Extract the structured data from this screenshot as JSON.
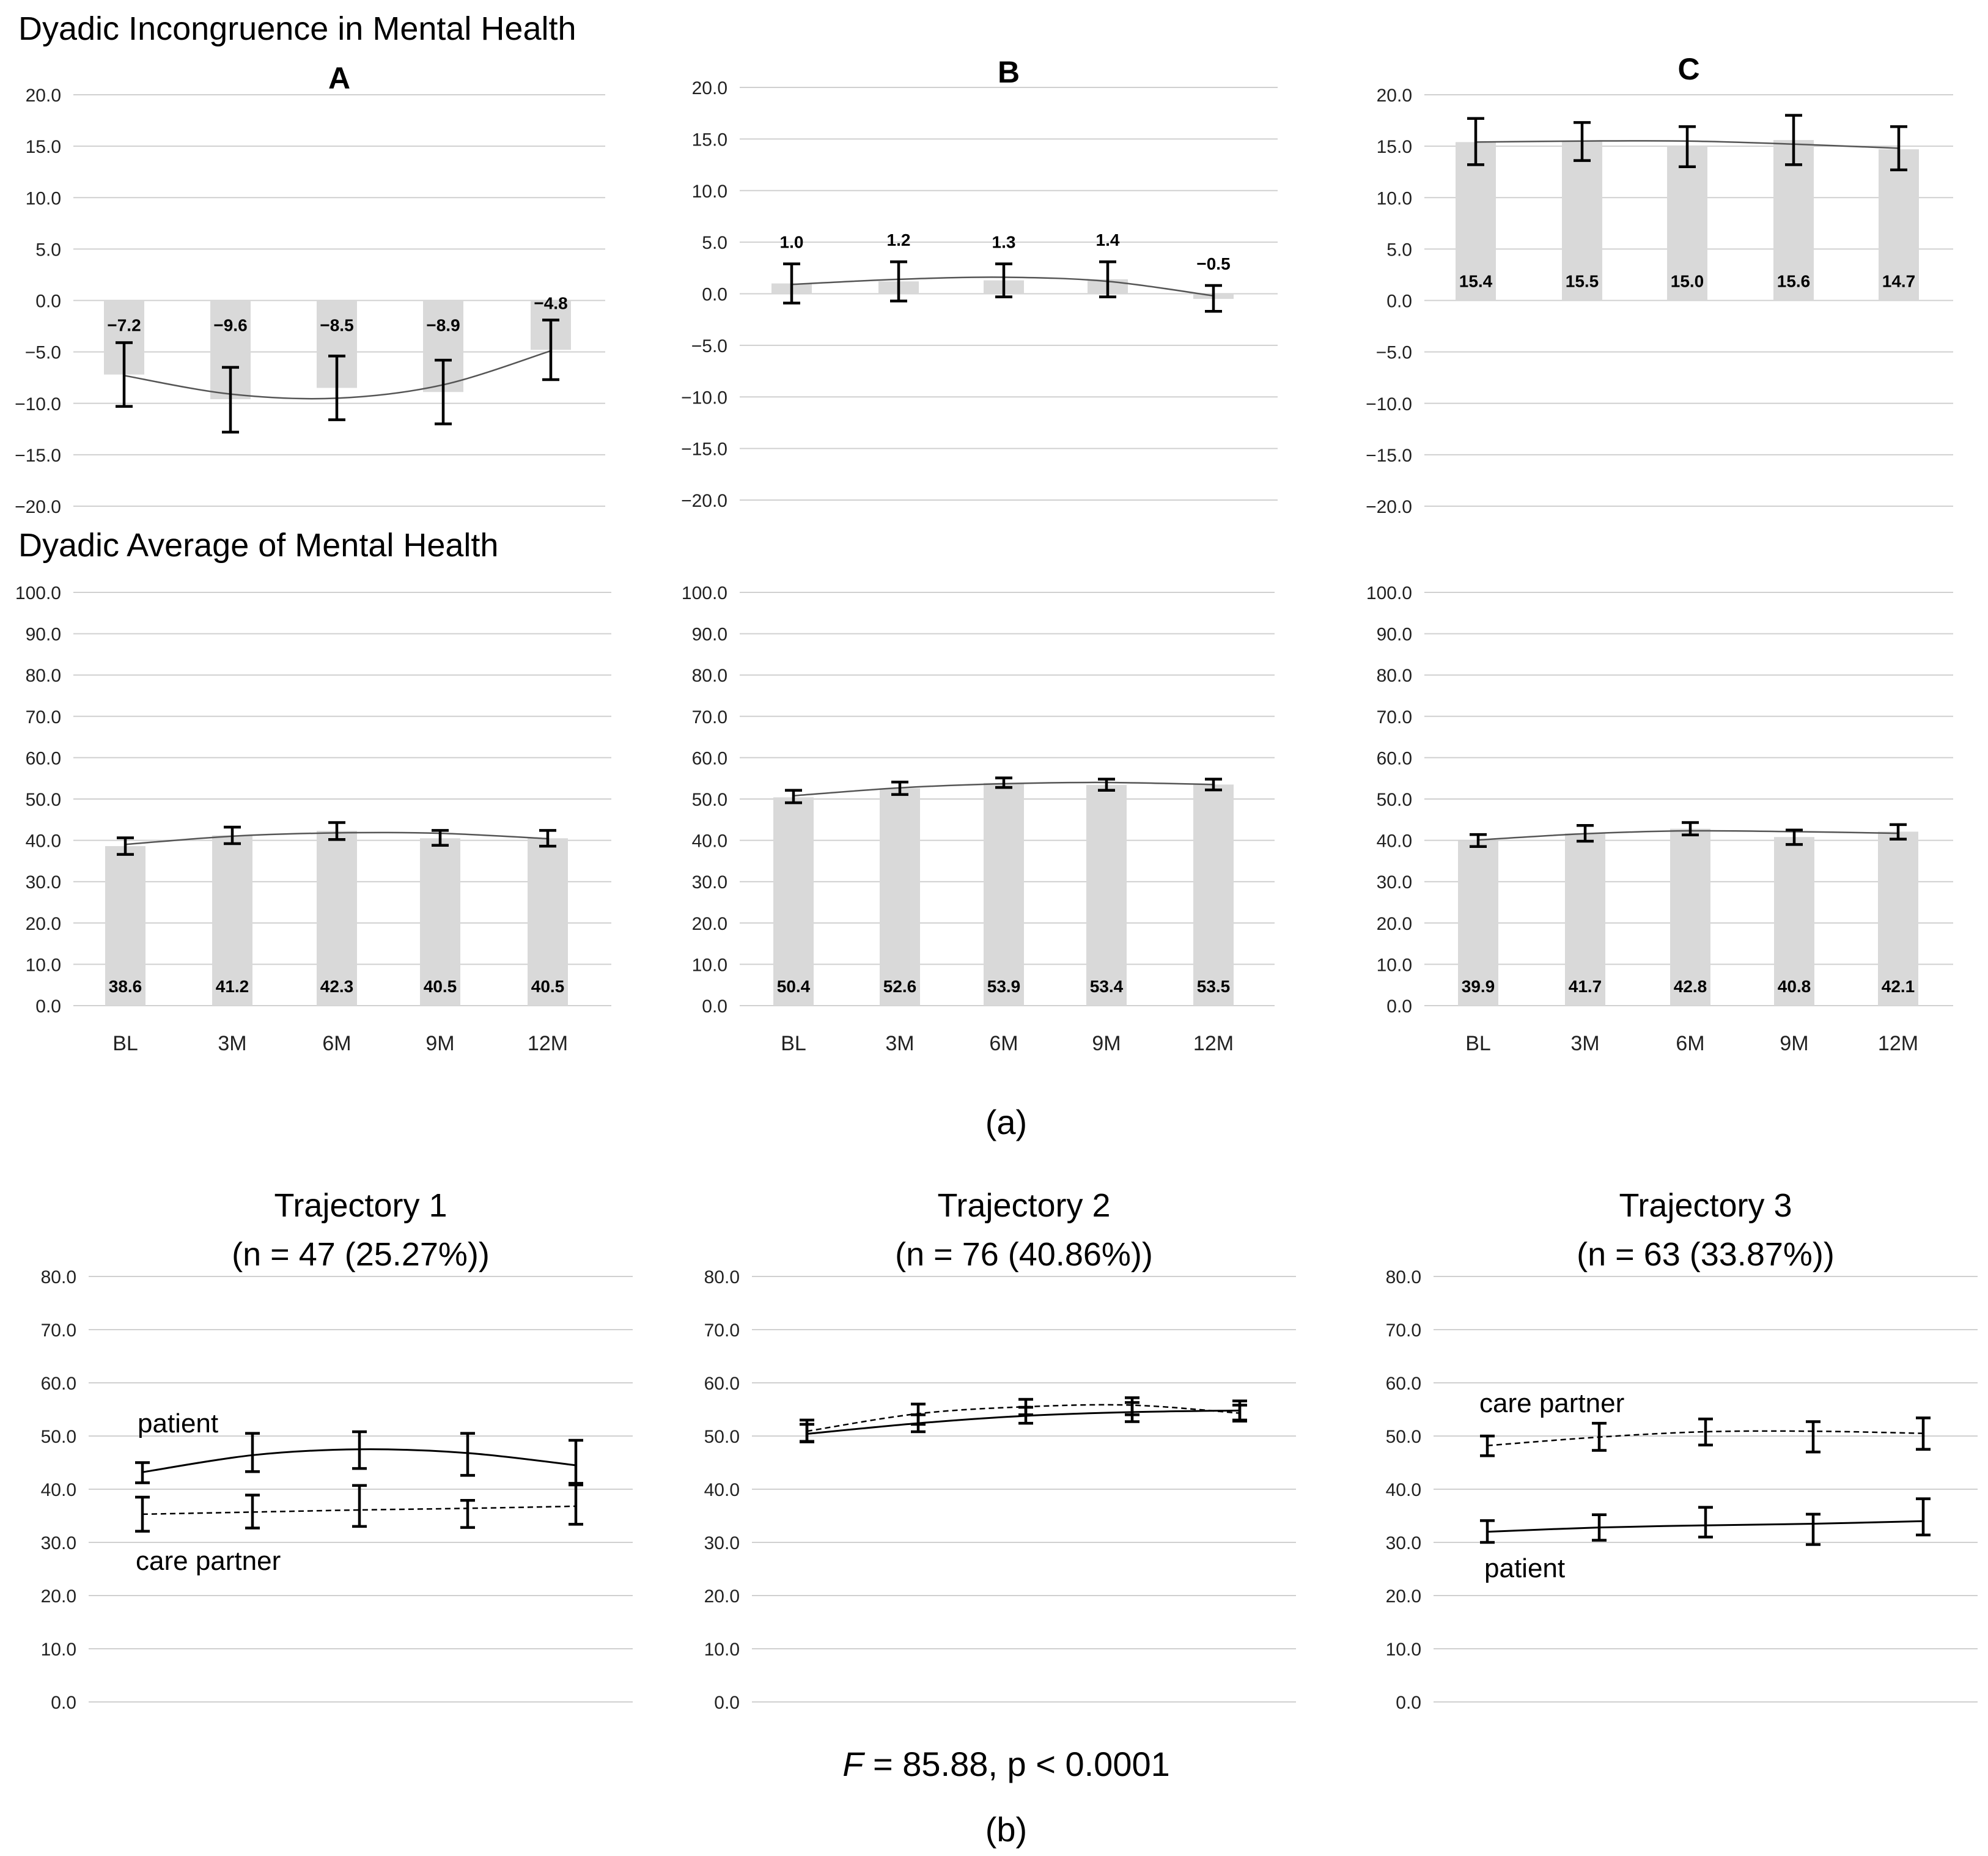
{
  "figure": {
    "section_a_title": "Dyadic Incongruence in Mental Health",
    "section_a_subtitle": "Dyadic Average of Mental Health",
    "caption_a": "(a)",
    "caption_b": "(b)",
    "statistic": "F = 85.88, p < 0.0001",
    "statistic_symbol": "F",
    "statistic_rest": " = 85.88, p < 0.0001",
    "colors": {
      "bar": "#d9d9d9",
      "grid": "#d0d0d0",
      "line": "#000000",
      "trend": "#555555"
    }
  },
  "chart_data": [
    {
      "id": "incongruence-A",
      "type": "bar",
      "title": "A",
      "categories": [
        "BL",
        "3M",
        "6M",
        "9M",
        "12M"
      ],
      "values": [
        -7.2,
        -9.6,
        -8.5,
        -8.9,
        -4.8
      ],
      "labels": [
        "−7.2",
        "−9.6",
        "−8.5",
        "−8.9",
        "−4.8"
      ],
      "errors": [
        [
          -10.3,
          -4.1
        ],
        [
          -12.8,
          -6.5
        ],
        [
          -11.6,
          -5.4
        ],
        [
          -12.0,
          -5.8
        ],
        [
          -7.7,
          -1.9
        ]
      ],
      "trend": [
        -7.3,
        -9.1,
        -9.5,
        -8.2,
        -4.9
      ],
      "ylim": [
        -20,
        20
      ],
      "yticks": [
        "20.0",
        "15.0",
        "10.0",
        "5.0",
        "0.0",
        "−5.0",
        "−10.0",
        "−15.0",
        "−20.0"
      ]
    },
    {
      "id": "incongruence-B",
      "type": "bar",
      "title": "B",
      "categories": [
        "BL",
        "3M",
        "6M",
        "9M",
        "12M"
      ],
      "values": [
        1.0,
        1.2,
        1.3,
        1.4,
        -0.5
      ],
      "labels": [
        "1.0",
        "1.2",
        "1.3",
        "1.4",
        "−0.5"
      ],
      "errors": [
        [
          -0.9,
          2.9
        ],
        [
          -0.7,
          3.1
        ],
        [
          -0.3,
          2.9
        ],
        [
          -0.3,
          3.1
        ],
        [
          -1.7,
          0.8
        ]
      ],
      "trend": [
        0.9,
        1.4,
        1.6,
        1.2,
        -0.2
      ],
      "ylim": [
        -20,
        20
      ],
      "yticks": [
        "20.0",
        "15.0",
        "10.0",
        "5.0",
        "0.0",
        "−5.0",
        "−10.0",
        "−15.0",
        "−20.0"
      ]
    },
    {
      "id": "incongruence-C",
      "type": "bar",
      "title": "C",
      "categories": [
        "BL",
        "3M",
        "6M",
        "9M",
        "12M"
      ],
      "values": [
        15.4,
        15.5,
        15.0,
        15.6,
        14.7
      ],
      "labels": [
        "15.4",
        "15.5",
        "15.0",
        "15.6",
        "14.7"
      ],
      "errors": [
        [
          13.2,
          17.7
        ],
        [
          13.6,
          17.3
        ],
        [
          13.0,
          16.9
        ],
        [
          13.2,
          18.0
        ],
        [
          12.7,
          16.9
        ]
      ],
      "trend": [
        15.4,
        15.5,
        15.5,
        15.2,
        14.8
      ],
      "ylim": [
        -20,
        20
      ],
      "yticks": [
        "20.0",
        "15.0",
        "10.0",
        "5.0",
        "0.0",
        "−5.0",
        "−10.0",
        "−15.0",
        "−20.0"
      ]
    },
    {
      "id": "average-A",
      "type": "bar",
      "categories": [
        "BL",
        "3M",
        "6M",
        "9M",
        "12M"
      ],
      "values": [
        38.6,
        41.2,
        42.3,
        40.5,
        40.5
      ],
      "labels": [
        "38.6",
        "41.2",
        "42.3",
        "40.5",
        "40.5"
      ],
      "errors": [
        [
          36.6,
          40.6
        ],
        [
          39.2,
          43.2
        ],
        [
          40.2,
          44.3
        ],
        [
          38.8,
          42.4
        ],
        [
          38.6,
          42.4
        ]
      ],
      "trend": [
        39.0,
        41.0,
        41.8,
        41.7,
        40.4
      ],
      "ylim": [
        0,
        100
      ],
      "yticks": [
        "100.0",
        "90.0",
        "80.0",
        "70.0",
        "60.0",
        "50.0",
        "40.0",
        "30.0",
        "20.0",
        "10.0",
        "0.0"
      ]
    },
    {
      "id": "average-B",
      "type": "bar",
      "categories": [
        "BL",
        "3M",
        "6M",
        "9M",
        "12M"
      ],
      "values": [
        50.4,
        52.6,
        53.9,
        53.4,
        53.5
      ],
      "labels": [
        "50.4",
        "52.6",
        "53.9",
        "53.4",
        "53.5"
      ],
      "errors": [
        [
          49.1,
          52.1
        ],
        [
          51.1,
          54.1
        ],
        [
          52.8,
          55.1
        ],
        [
          52.1,
          54.8
        ],
        [
          52.2,
          54.8
        ]
      ],
      "trend": [
        50.8,
        52.7,
        53.7,
        54.0,
        53.5
      ],
      "ylim": [
        0,
        100
      ],
      "yticks": [
        "100.0",
        "90.0",
        "80.0",
        "70.0",
        "60.0",
        "50.0",
        "40.0",
        "30.0",
        "20.0",
        "10.0",
        "0.0"
      ]
    },
    {
      "id": "average-C",
      "type": "bar",
      "categories": [
        "BL",
        "3M",
        "6M",
        "9M",
        "12M"
      ],
      "values": [
        39.9,
        41.7,
        42.8,
        40.8,
        42.1
      ],
      "labels": [
        "39.9",
        "41.7",
        "42.8",
        "40.8",
        "42.1"
      ],
      "errors": [
        [
          38.5,
          41.4
        ],
        [
          39.8,
          43.6
        ],
        [
          41.3,
          44.3
        ],
        [
          39.0,
          42.5
        ],
        [
          40.3,
          43.8
        ]
      ],
      "trend": [
        40.1,
        41.6,
        42.3,
        42.1,
        41.7
      ],
      "ylim": [
        0,
        100
      ],
      "yticks": [
        "100.0",
        "90.0",
        "80.0",
        "70.0",
        "60.0",
        "50.0",
        "40.0",
        "30.0",
        "20.0",
        "10.0",
        "0.0"
      ]
    },
    {
      "id": "trajectory-1",
      "type": "line",
      "title": "Trajectory 1",
      "subtitle": "(n = 47 (25.27%))",
      "x_positions": 5,
      "ylim": [
        0,
        80
      ],
      "yticks": [
        "80.0",
        "70.0",
        "60.0",
        "50.0",
        "40.0",
        "30.0",
        "20.0",
        "10.0",
        "0.0"
      ],
      "series": [
        {
          "name": "patient",
          "style": "solid",
          "values": [
            43.2,
            46.4,
            47.5,
            46.8,
            44.5
          ],
          "errors": [
            [
              41.2,
              45.0
            ],
            [
              43.3,
              50.5
            ],
            [
              43.9,
              50.8
            ],
            [
              42.6,
              50.5
            ],
            [
              40.8,
              49.2
            ]
          ]
        },
        {
          "name": "care partner",
          "style": "dashed",
          "values": [
            35.3,
            35.7,
            36.1,
            36.4,
            36.8
          ],
          "errors": [
            [
              32.1,
              38.5
            ],
            [
              32.7,
              38.9
            ],
            [
              33.0,
              40.7
            ],
            [
              32.8,
              37.9
            ],
            [
              33.4,
              41.1
            ]
          ]
        }
      ]
    },
    {
      "id": "trajectory-2",
      "type": "line",
      "title": "Trajectory 2",
      "subtitle": "(n = 76 (40.86%))",
      "x_positions": 5,
      "ylim": [
        0,
        80
      ],
      "yticks": [
        "80.0",
        "70.0",
        "60.0",
        "50.0",
        "40.0",
        "30.0",
        "20.0",
        "10.0",
        "0.0"
      ],
      "series": [
        {
          "style": "solid",
          "values": [
            50.4,
            52.4,
            53.8,
            54.5,
            54.8
          ],
          "errors": [
            [
              49.0,
              52.2
            ],
            [
              50.8,
              54.0
            ],
            [
              52.4,
              55.4
            ],
            [
              52.7,
              56.3
            ],
            [
              53.0,
              56.6
            ]
          ]
        },
        {
          "style": "dashed",
          "values": [
            50.9,
            54.2,
            55.5,
            55.8,
            54.3
          ],
          "errors": [
            [
              48.9,
              53.0
            ],
            [
              52.2,
              56.0
            ],
            [
              54.0,
              56.9
            ],
            [
              54.0,
              57.2
            ],
            [
              52.8,
              55.8
            ]
          ]
        }
      ]
    },
    {
      "id": "trajectory-3",
      "type": "line",
      "title": "Trajectory 3",
      "subtitle": "(n = 63 (33.87%))",
      "x_positions": 5,
      "ylim": [
        0,
        80
      ],
      "yticks": [
        "80.0",
        "70.0",
        "60.0",
        "50.0",
        "40.0",
        "30.0",
        "20.0",
        "10.0",
        "0.0"
      ],
      "series": [
        {
          "name": "care partner",
          "style": "dashed",
          "values": [
            48.2,
            49.8,
            50.8,
            50.9,
            50.5
          ],
          "errors": [
            [
              46.3,
              50.0
            ],
            [
              47.3,
              52.4
            ],
            [
              48.3,
              53.2
            ],
            [
              47.0,
              52.7
            ],
            [
              47.5,
              53.4
            ]
          ]
        },
        {
          "name": "patient",
          "style": "solid",
          "values": [
            32.0,
            32.8,
            33.2,
            33.5,
            34.0
          ],
          "errors": [
            [
              30.0,
              34.1
            ],
            [
              30.4,
              35.2
            ],
            [
              31.0,
              36.6
            ],
            [
              29.6,
              35.3
            ],
            [
              31.4,
              38.2
            ]
          ]
        }
      ]
    }
  ]
}
